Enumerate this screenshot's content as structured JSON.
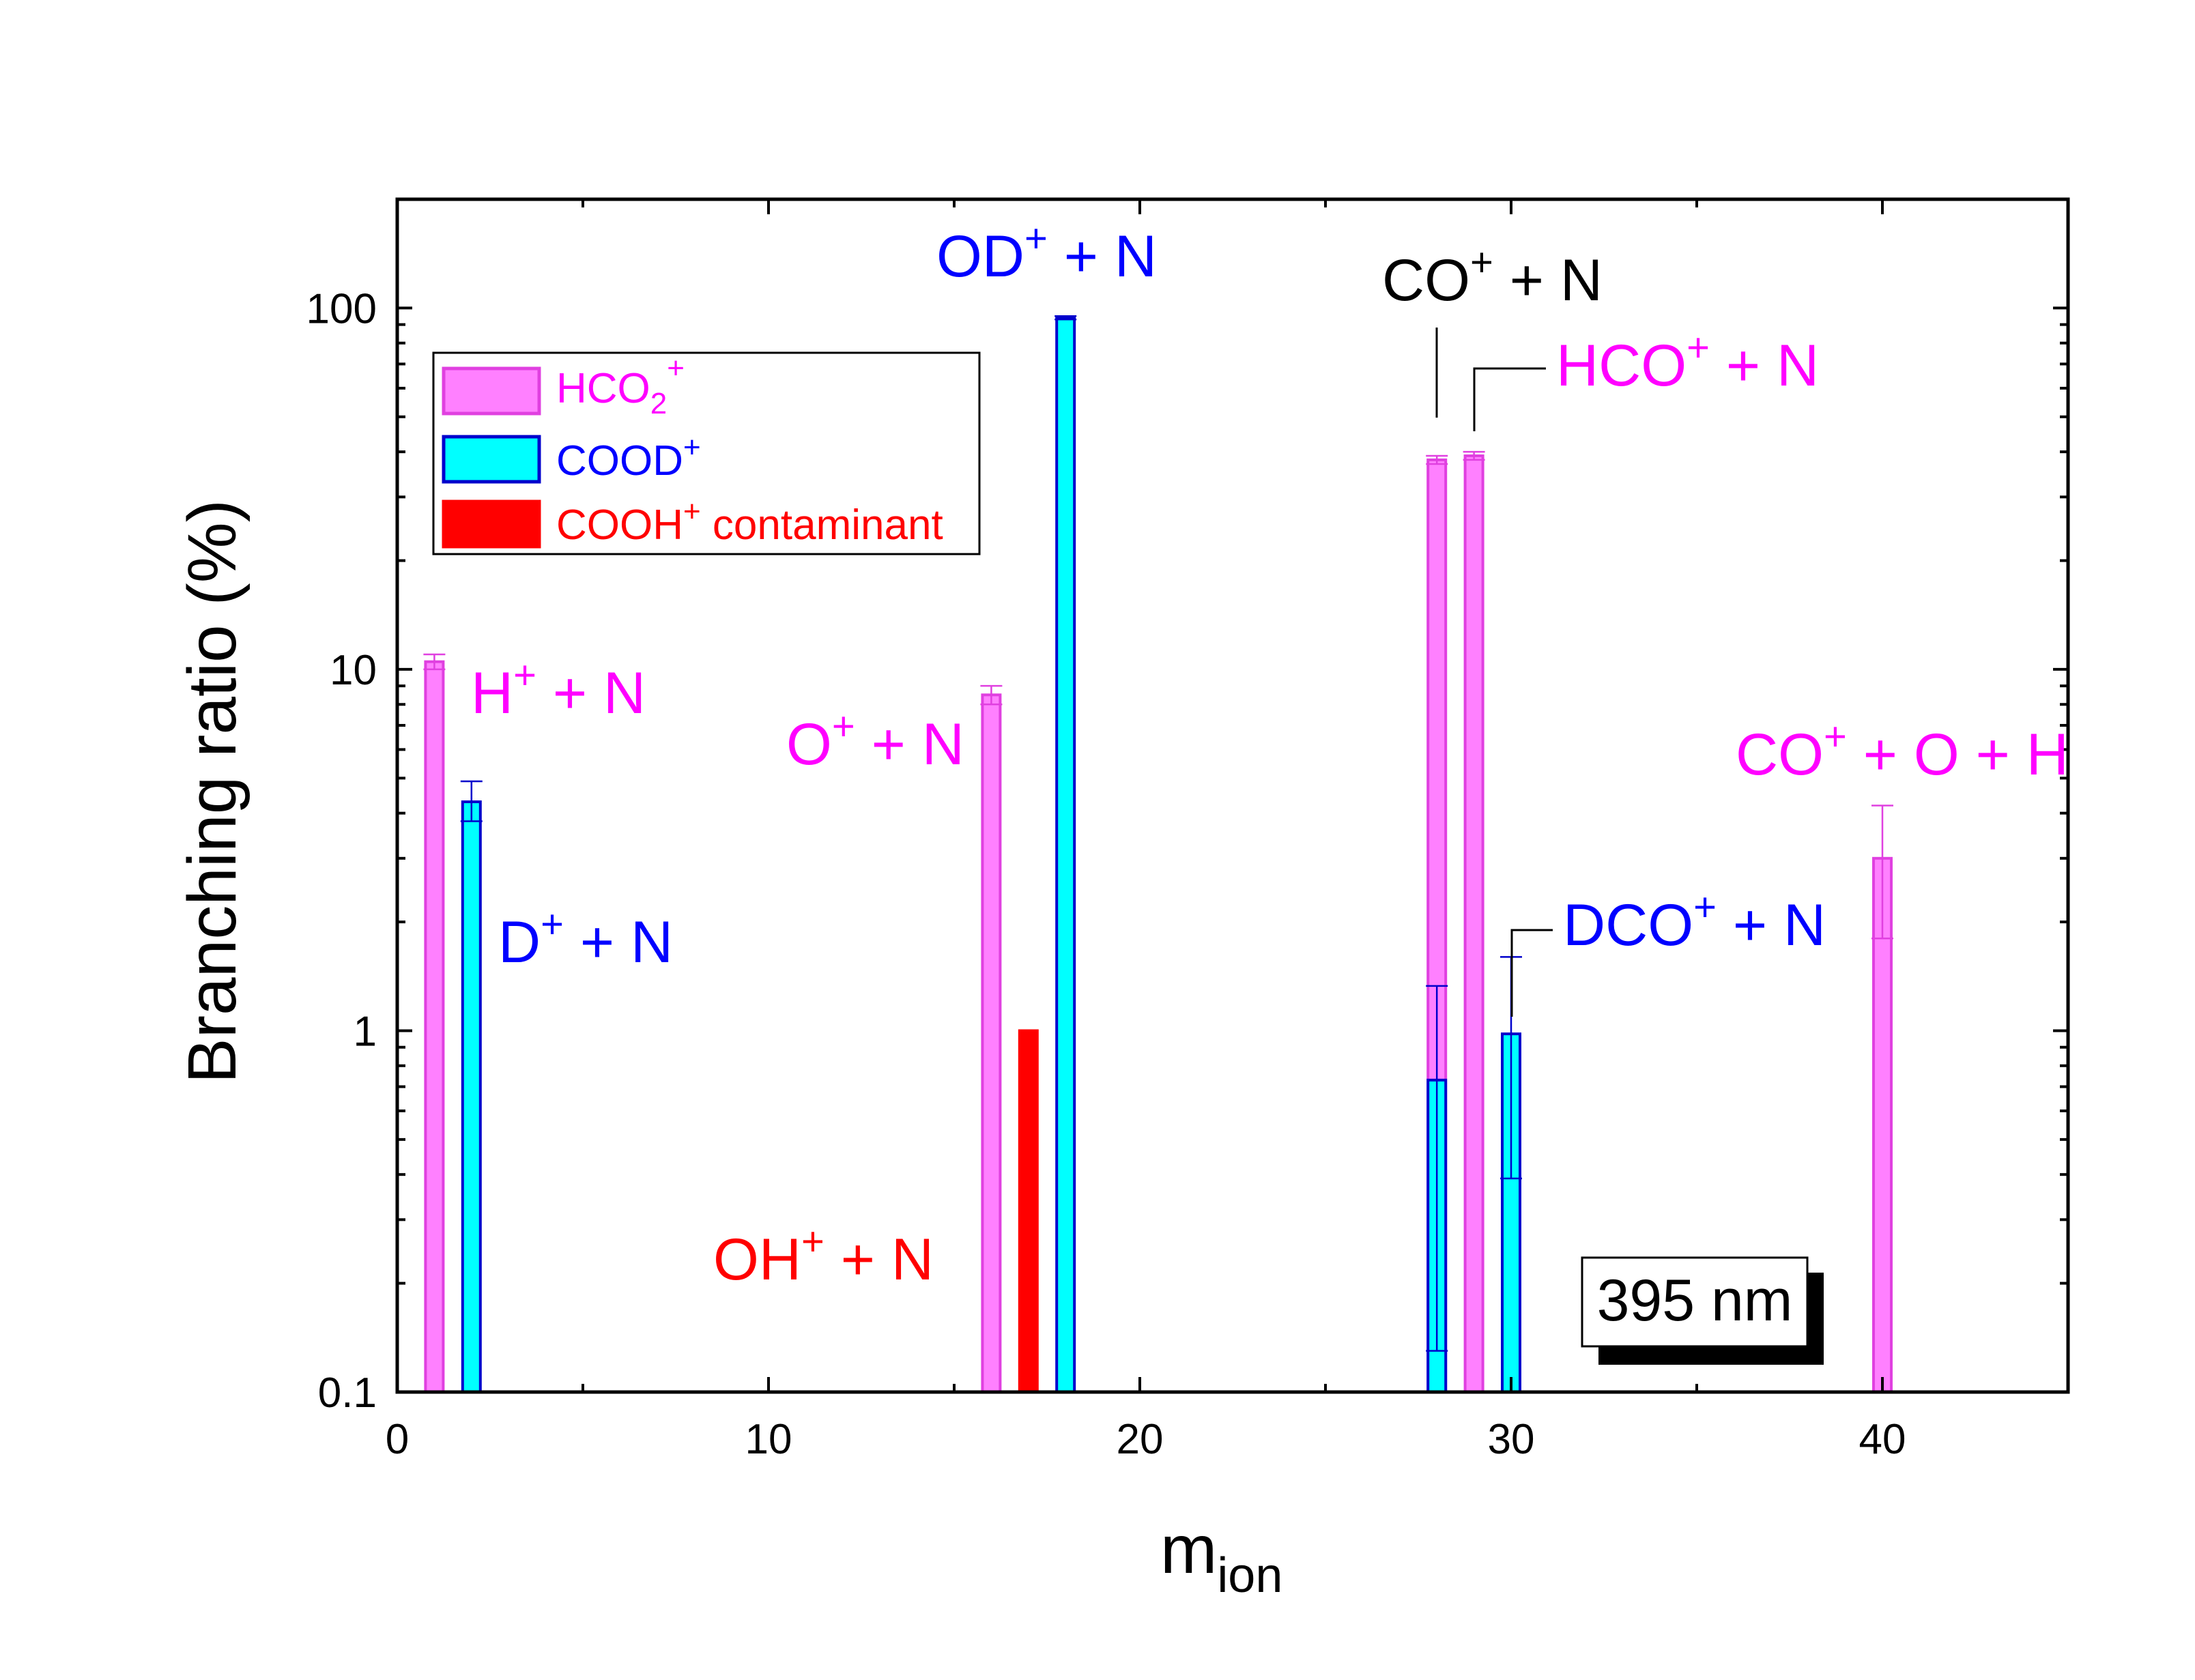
{
  "chart_data": {
    "type": "bar",
    "xlabel": "m",
    "xlabel_sub": "ion",
    "ylabel": "Branching ratio  (%)",
    "xlim": [
      0,
      45
    ],
    "ylim": [
      0.1,
      200
    ],
    "yscale": "log",
    "xticks": [
      0,
      10,
      20,
      30,
      40
    ],
    "yticks": [
      {
        "v": 0.1,
        "label": "0.1"
      },
      {
        "v": 1,
        "label": "1"
      },
      {
        "v": 10,
        "label": "10"
      },
      {
        "v": 100,
        "label": "100"
      }
    ],
    "legend": {
      "placement": "top-left",
      "items": [
        {
          "key": "hco2",
          "label": "HCO",
          "sub": "2",
          "sup": "+",
          "suffix": ""
        },
        {
          "key": "cood",
          "label": "COOD",
          "sub": "",
          "sup": "+",
          "suffix": ""
        },
        {
          "key": "cooh",
          "label": "COOH",
          "sub": "",
          "sup": "+",
          "suffix": " contaminant"
        }
      ]
    },
    "series": [
      {
        "key": "hco2",
        "fill": "#ff80ff",
        "stroke": "#e040e0",
        "err": "#e040e0",
        "bars": [
          {
            "x": 1,
            "value": 10.5,
            "err_low": 10.0,
            "err_high": 11.0
          },
          {
            "x": 16,
            "value": 8.5,
            "err_low": 8.0,
            "err_high": 9.0
          },
          {
            "x": 28,
            "value": 38,
            "err_low": 37,
            "err_high": 39
          },
          {
            "x": 29,
            "value": 39,
            "err_low": 38,
            "err_high": 40
          },
          {
            "x": 40,
            "value": 3.0,
            "err_low": 1.8,
            "err_high": 4.2
          }
        ]
      },
      {
        "key": "cood",
        "fill": "#00ffff",
        "stroke": "#0000cc",
        "err": "#0000cc",
        "bars": [
          {
            "x": 2,
            "value": 4.3,
            "err_low": 3.8,
            "err_high": 4.9
          },
          {
            "x": 18,
            "value": 94,
            "err_low": 93,
            "err_high": 95
          },
          {
            "x": 28,
            "value": 0.73,
            "err_low": 0.13,
            "err_high": 1.33
          },
          {
            "x": 30,
            "value": 0.98,
            "err_low": 0.39,
            "err_high": 1.6
          }
        ]
      },
      {
        "key": "cooh",
        "fill": "#ff0000",
        "stroke": "#ff0000",
        "err": "#ff0000",
        "bars": [
          {
            "x": 17,
            "value": 1.0
          }
        ]
      }
    ],
    "annotations": [
      {
        "id": "h",
        "base": "H",
        "sup": "+",
        "rest": " + N",
        "color": "#ff00ff"
      },
      {
        "id": "d",
        "base": "D",
        "sup": "+",
        "rest": " + N",
        "color": "#0000ff"
      },
      {
        "id": "o",
        "base": "O",
        "sup": "+",
        "rest": " + N",
        "color": "#ff00ff"
      },
      {
        "id": "od",
        "base": "OD",
        "sup": "+",
        "rest": " + N",
        "color": "#0000ff"
      },
      {
        "id": "oh",
        "base": "OH",
        "sup": "+",
        "rest": " + N",
        "color": "#ff0000"
      },
      {
        "id": "co",
        "base": "CO",
        "sup": "+",
        "rest": " + N",
        "color": "#000000"
      },
      {
        "id": "hco",
        "base": "HCO",
        "sup": "+",
        "rest": " + N",
        "color": "#ff00ff"
      },
      {
        "id": "dco",
        "base": "DCO",
        "sup": "+",
        "rest": " + N",
        "color": "#0000ff"
      },
      {
        "id": "cooh",
        "base": "CO",
        "sup": "+",
        "rest": " + O + H",
        "color": "#ff00ff"
      }
    ],
    "wavelength_label": "395 nm"
  }
}
